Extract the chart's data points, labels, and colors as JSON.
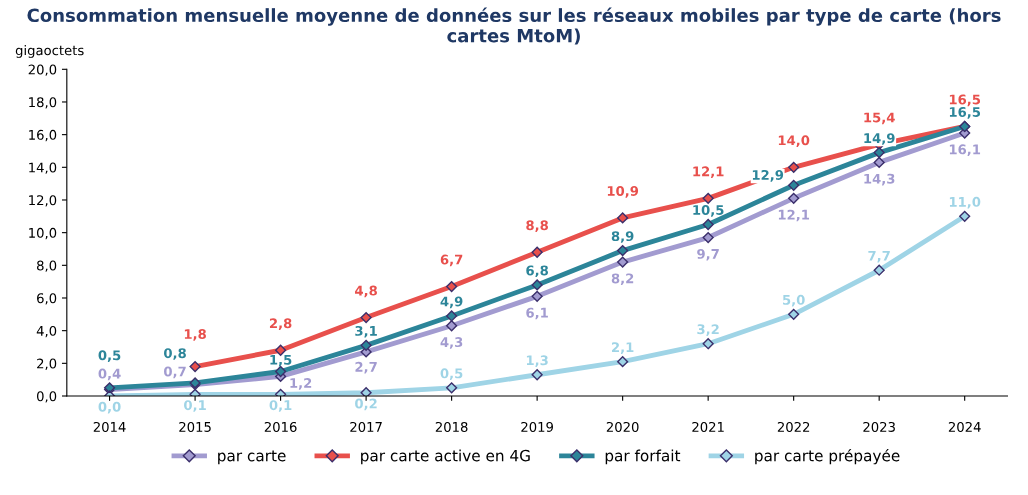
{
  "chart_data": {
    "type": "line",
    "title": "Consommation mensuelle moyenne de données sur les réseaux mobiles par type de carte (hors cartes MtoM)",
    "ylabel": "gigaoctets",
    "categories": [
      "2014",
      "2015",
      "2016",
      "2017",
      "2018",
      "2019",
      "2020",
      "2021",
      "2022",
      "2023",
      "2024"
    ],
    "series": [
      {
        "name": "par carte",
        "color": "#a29bd0",
        "values": [
          0.4,
          0.7,
          1.2,
          2.7,
          4.3,
          6.1,
          8.2,
          9.7,
          12.1,
          14.3,
          16.1
        ],
        "value_labels": [
          "0,4",
          "0,7",
          "1,2",
          "2,7",
          "4,3",
          "6,1",
          "8,2",
          "9,7",
          "12,1",
          "14,3",
          "16,1"
        ]
      },
      {
        "name": "par carte active en 4G",
        "color": "#e8504c",
        "values": [
          null,
          1.8,
          2.8,
          4.8,
          6.7,
          8.8,
          10.9,
          12.1,
          14.0,
          15.4,
          16.5
        ],
        "value_labels": [
          null,
          "1,8",
          "2,8",
          "4,8",
          "6,7",
          "8,8",
          "10,9",
          "12,1",
          "14,0",
          "15,4",
          "16,5"
        ]
      },
      {
        "name": "par forfait",
        "color": "#2c8599",
        "values": [
          0.5,
          0.8,
          1.5,
          3.1,
          4.9,
          6.8,
          8.9,
          10.5,
          12.9,
          14.9,
          16.5
        ],
        "value_labels": [
          "0,5",
          "0,8",
          "1,5",
          "3,1",
          "4,9",
          "6,8",
          "8,9",
          "10,5",
          "12,9",
          "14,9",
          "16,5"
        ]
      },
      {
        "name": "par carte prépayée",
        "color": "#9fd4e6",
        "values": [
          0.0,
          0.1,
          0.1,
          0.2,
          0.5,
          1.3,
          2.1,
          3.2,
          5.0,
          7.7,
          11.0
        ],
        "value_labels": [
          "0,0",
          "0,1",
          "0,1",
          "0,2",
          "0,5",
          "1,3",
          "2,1",
          "3,2",
          "5,0",
          "7,7",
          "11,0"
        ]
      }
    ],
    "ylim": [
      0,
      20
    ],
    "yticks": [
      {
        "value": 0,
        "label": "0,0"
      },
      {
        "value": 2,
        "label": "2,0"
      },
      {
        "value": 4,
        "label": "4,0"
      },
      {
        "value": 6,
        "label": "6,0"
      },
      {
        "value": 8,
        "label": "8,0"
      },
      {
        "value": 10,
        "label": "10,0"
      },
      {
        "value": 12,
        "label": "12,0"
      },
      {
        "value": 14,
        "label": "14,0"
      },
      {
        "value": 16,
        "label": "16,0"
      },
      {
        "value": 18,
        "label": "18,0"
      },
      {
        "value": 20,
        "label": "20,0"
      }
    ],
    "grid": false,
    "legend": "bottom",
    "marker": "diamond",
    "line_style": "solid"
  }
}
